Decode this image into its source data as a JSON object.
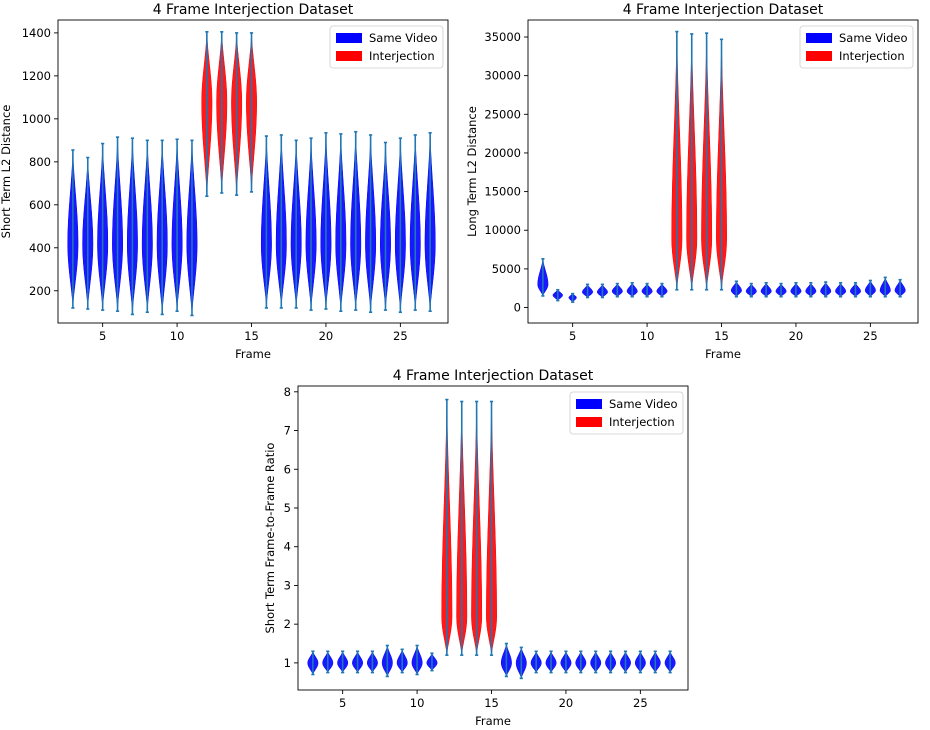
{
  "colors": {
    "same": "#0000ff",
    "interjection": "#ff0000",
    "whisker": "#1f77b4",
    "frame": "#000000"
  },
  "chart_data": [
    {
      "type": "violin",
      "title": "4 Frame Interjection Dataset",
      "xlabel": "Frame",
      "ylabel": "Short Term L2 Distance",
      "xlim": [
        2,
        28.2
      ],
      "ylim": [
        50,
        1460
      ],
      "xticks": [
        5,
        10,
        15,
        20,
        25
      ],
      "yticks": [
        200,
        400,
        600,
        800,
        1000,
        1200,
        1400
      ],
      "legend": {
        "position": "top-right",
        "entries": [
          "Same Video",
          "Interjection"
        ]
      },
      "violins": [
        {
          "frame": 3,
          "series": "Same Video",
          "min": 120,
          "max": 855,
          "center": 420
        },
        {
          "frame": 4,
          "series": "Same Video",
          "min": 115,
          "max": 820,
          "center": 420
        },
        {
          "frame": 5,
          "series": "Same Video",
          "min": 110,
          "max": 885,
          "center": 420
        },
        {
          "frame": 6,
          "series": "Same Video",
          "min": 105,
          "max": 915,
          "center": 420
        },
        {
          "frame": 7,
          "series": "Same Video",
          "min": 90,
          "max": 910,
          "center": 420
        },
        {
          "frame": 8,
          "series": "Same Video",
          "min": 100,
          "max": 900,
          "center": 420
        },
        {
          "frame": 9,
          "series": "Same Video",
          "min": 90,
          "max": 900,
          "center": 420
        },
        {
          "frame": 10,
          "series": "Same Video",
          "min": 105,
          "max": 905,
          "center": 420
        },
        {
          "frame": 11,
          "series": "Same Video",
          "min": 85,
          "max": 900,
          "center": 420
        },
        {
          "frame": 12,
          "series": "Interjection",
          "min": 640,
          "max": 1405,
          "center": 1080
        },
        {
          "frame": 13,
          "series": "Interjection",
          "min": 655,
          "max": 1405,
          "center": 1080
        },
        {
          "frame": 14,
          "series": "Interjection",
          "min": 645,
          "max": 1400,
          "center": 1080
        },
        {
          "frame": 15,
          "series": "Interjection",
          "min": 660,
          "max": 1400,
          "center": 1080
        },
        {
          "frame": 16,
          "series": "Same Video",
          "min": 120,
          "max": 920,
          "center": 420
        },
        {
          "frame": 17,
          "series": "Same Video",
          "min": 120,
          "max": 925,
          "center": 420
        },
        {
          "frame": 18,
          "series": "Same Video",
          "min": 120,
          "max": 900,
          "center": 420
        },
        {
          "frame": 19,
          "series": "Same Video",
          "min": 110,
          "max": 910,
          "center": 420
        },
        {
          "frame": 20,
          "series": "Same Video",
          "min": 115,
          "max": 935,
          "center": 420
        },
        {
          "frame": 21,
          "series": "Same Video",
          "min": 105,
          "max": 930,
          "center": 420
        },
        {
          "frame": 22,
          "series": "Same Video",
          "min": 110,
          "max": 940,
          "center": 420
        },
        {
          "frame": 23,
          "series": "Same Video",
          "min": 100,
          "max": 925,
          "center": 420
        },
        {
          "frame": 24,
          "series": "Same Video",
          "min": 110,
          "max": 890,
          "center": 420
        },
        {
          "frame": 25,
          "series": "Same Video",
          "min": 100,
          "max": 910,
          "center": 420
        },
        {
          "frame": 26,
          "series": "Same Video",
          "min": 110,
          "max": 925,
          "center": 420
        },
        {
          "frame": 27,
          "series": "Same Video",
          "min": 105,
          "max": 935,
          "center": 420
        }
      ]
    },
    {
      "type": "violin",
      "title": "4 Frame Interjection Dataset",
      "xlabel": "Frame",
      "ylabel": "Long Term L2 Distance",
      "xlim": [
        2,
        28.2
      ],
      "ylim": [
        -2000,
        37200
      ],
      "xticks": [
        5,
        10,
        15,
        20,
        25
      ],
      "yticks": [
        0,
        5000,
        10000,
        15000,
        20000,
        25000,
        30000,
        35000
      ],
      "legend": {
        "position": "top-right",
        "entries": [
          "Same Video",
          "Interjection"
        ]
      },
      "violins": [
        {
          "frame": 3,
          "series": "Same Video",
          "min": 1500,
          "max": 6300,
          "center": 3000
        },
        {
          "frame": 4,
          "series": "Same Video",
          "min": 900,
          "max": 2300,
          "center": 1600
        },
        {
          "frame": 5,
          "series": "Same Video",
          "min": 700,
          "max": 1800,
          "center": 1300
        },
        {
          "frame": 6,
          "series": "Same Video",
          "min": 1300,
          "max": 3000,
          "center": 2000
        },
        {
          "frame": 7,
          "series": "Same Video",
          "min": 1300,
          "max": 3000,
          "center": 2000
        },
        {
          "frame": 8,
          "series": "Same Video",
          "min": 1400,
          "max": 3100,
          "center": 2100
        },
        {
          "frame": 9,
          "series": "Same Video",
          "min": 1400,
          "max": 3200,
          "center": 2100
        },
        {
          "frame": 10,
          "series": "Same Video",
          "min": 1400,
          "max": 3100,
          "center": 2100
        },
        {
          "frame": 11,
          "series": "Same Video",
          "min": 1400,
          "max": 3100,
          "center": 2100
        },
        {
          "frame": 12,
          "series": "Interjection",
          "min": 2300,
          "max": 35700,
          "center": 9000
        },
        {
          "frame": 13,
          "series": "Interjection",
          "min": 2300,
          "max": 35400,
          "center": 9000
        },
        {
          "frame": 14,
          "series": "Interjection",
          "min": 2300,
          "max": 35500,
          "center": 9000
        },
        {
          "frame": 15,
          "series": "Interjection",
          "min": 2300,
          "max": 34700,
          "center": 9000
        },
        {
          "frame": 16,
          "series": "Same Video",
          "min": 1400,
          "max": 3400,
          "center": 2200
        },
        {
          "frame": 17,
          "series": "Same Video",
          "min": 1400,
          "max": 3100,
          "center": 2100
        },
        {
          "frame": 18,
          "series": "Same Video",
          "min": 1400,
          "max": 3200,
          "center": 2100
        },
        {
          "frame": 19,
          "series": "Same Video",
          "min": 1400,
          "max": 3100,
          "center": 2100
        },
        {
          "frame": 20,
          "series": "Same Video",
          "min": 1400,
          "max": 3200,
          "center": 2100
        },
        {
          "frame": 21,
          "series": "Same Video",
          "min": 1400,
          "max": 3200,
          "center": 2100
        },
        {
          "frame": 22,
          "series": "Same Video",
          "min": 1400,
          "max": 3300,
          "center": 2100
        },
        {
          "frame": 23,
          "series": "Same Video",
          "min": 1400,
          "max": 3200,
          "center": 2100
        },
        {
          "frame": 24,
          "series": "Same Video",
          "min": 1400,
          "max": 3200,
          "center": 2100
        },
        {
          "frame": 25,
          "series": "Same Video",
          "min": 1400,
          "max": 3500,
          "center": 2200
        },
        {
          "frame": 26,
          "series": "Same Video",
          "min": 1400,
          "max": 3900,
          "center": 2200
        },
        {
          "frame": 27,
          "series": "Same Video",
          "min": 1400,
          "max": 3600,
          "center": 2200
        }
      ]
    },
    {
      "type": "violin",
      "title": "4 Frame Interjection Dataset",
      "xlabel": "Frame",
      "ylabel": "Short Term Frame-to-Frame Ratio",
      "xlim": [
        2,
        28.2
      ],
      "ylim": [
        0.3,
        8.15
      ],
      "xticks": [
        5,
        10,
        15,
        20,
        25
      ],
      "yticks": [
        1,
        2,
        3,
        4,
        5,
        6,
        7,
        8
      ],
      "legend": {
        "position": "top-right",
        "entries": [
          "Same Video",
          "Interjection"
        ]
      },
      "violins": [
        {
          "frame": 3,
          "series": "Same Video",
          "min": 0.7,
          "max": 1.3,
          "center": 1.0
        },
        {
          "frame": 4,
          "series": "Same Video",
          "min": 0.75,
          "max": 1.3,
          "center": 1.0
        },
        {
          "frame": 5,
          "series": "Same Video",
          "min": 0.75,
          "max": 1.3,
          "center": 1.0
        },
        {
          "frame": 6,
          "series": "Same Video",
          "min": 0.75,
          "max": 1.3,
          "center": 1.0
        },
        {
          "frame": 7,
          "series": "Same Video",
          "min": 0.75,
          "max": 1.3,
          "center": 1.0
        },
        {
          "frame": 8,
          "series": "Same Video",
          "min": 0.65,
          "max": 1.45,
          "center": 1.0
        },
        {
          "frame": 9,
          "series": "Same Video",
          "min": 0.75,
          "max": 1.35,
          "center": 1.0
        },
        {
          "frame": 10,
          "series": "Same Video",
          "min": 0.7,
          "max": 1.45,
          "center": 1.0
        },
        {
          "frame": 11,
          "series": "Same Video",
          "min": 0.8,
          "max": 1.25,
          "center": 1.0
        },
        {
          "frame": 12,
          "series": "Interjection",
          "min": 1.2,
          "max": 7.8,
          "center": 2.2
        },
        {
          "frame": 13,
          "series": "Interjection",
          "min": 1.2,
          "max": 7.75,
          "center": 2.2
        },
        {
          "frame": 14,
          "series": "Interjection",
          "min": 1.2,
          "max": 7.75,
          "center": 2.2
        },
        {
          "frame": 15,
          "series": "Interjection",
          "min": 1.2,
          "max": 7.75,
          "center": 2.2
        },
        {
          "frame": 16,
          "series": "Same Video",
          "min": 0.65,
          "max": 1.5,
          "center": 1.0
        },
        {
          "frame": 17,
          "series": "Same Video",
          "min": 0.6,
          "max": 1.4,
          "center": 1.0
        },
        {
          "frame": 18,
          "series": "Same Video",
          "min": 0.75,
          "max": 1.3,
          "center": 1.0
        },
        {
          "frame": 19,
          "series": "Same Video",
          "min": 0.75,
          "max": 1.3,
          "center": 1.0
        },
        {
          "frame": 20,
          "series": "Same Video",
          "min": 0.75,
          "max": 1.3,
          "center": 1.0
        },
        {
          "frame": 21,
          "series": "Same Video",
          "min": 0.75,
          "max": 1.3,
          "center": 1.0
        },
        {
          "frame": 22,
          "series": "Same Video",
          "min": 0.75,
          "max": 1.3,
          "center": 1.0
        },
        {
          "frame": 23,
          "series": "Same Video",
          "min": 0.75,
          "max": 1.3,
          "center": 1.0
        },
        {
          "frame": 24,
          "series": "Same Video",
          "min": 0.75,
          "max": 1.3,
          "center": 1.0
        },
        {
          "frame": 25,
          "series": "Same Video",
          "min": 0.75,
          "max": 1.3,
          "center": 1.0
        },
        {
          "frame": 26,
          "series": "Same Video",
          "min": 0.75,
          "max": 1.3,
          "center": 1.0
        },
        {
          "frame": 27,
          "series": "Same Video",
          "min": 0.75,
          "max": 1.3,
          "center": 1.0
        }
      ]
    }
  ]
}
